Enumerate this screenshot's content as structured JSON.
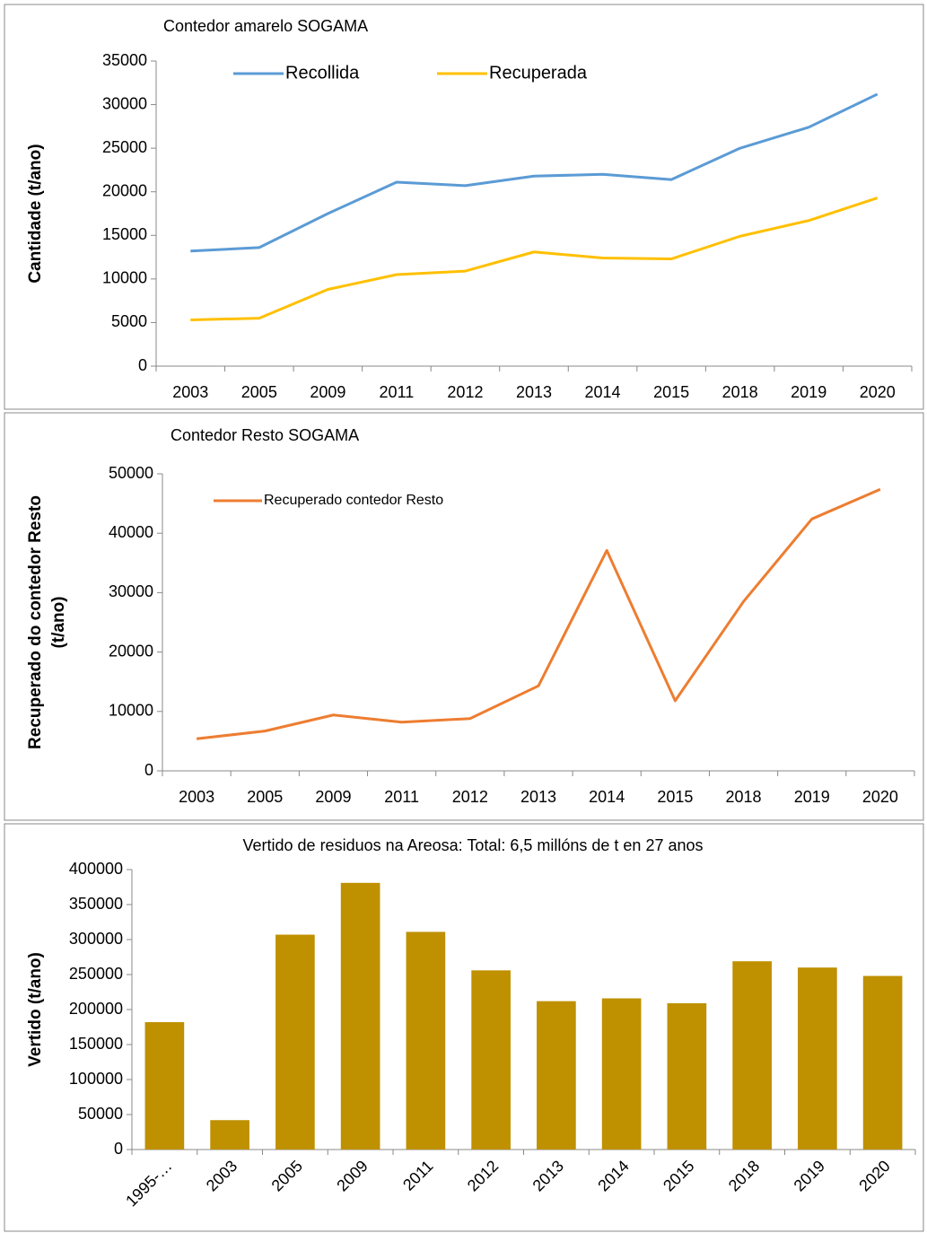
{
  "chart_data": [
    {
      "type": "line",
      "title": "Contedor amarelo SOGAMA",
      "ylabel": [
        "Cantidade (t/ano)"
      ],
      "categories": [
        "2003",
        "2005",
        "2009",
        "2011",
        "2012",
        "2013",
        "2014",
        "2015",
        "2018",
        "2019",
        "2020"
      ],
      "series": [
        {
          "name": "Recollida",
          "color": "#5b9bd5",
          "values": [
            13200,
            13600,
            17500,
            21100,
            20700,
            21800,
            22000,
            21400,
            25000,
            27400,
            31200
          ]
        },
        {
          "name": "Recuperada",
          "color": "#ffc000",
          "values": [
            5300,
            5500,
            8800,
            10500,
            10900,
            13100,
            12400,
            12300,
            14900,
            16700,
            19300
          ]
        }
      ],
      "ylim": [
        0,
        35000
      ],
      "yticks": [
        0,
        5000,
        10000,
        15000,
        20000,
        25000,
        30000,
        35000
      ],
      "legend": "top"
    },
    {
      "type": "line",
      "title": "Contedor Resto SOGAMA",
      "ylabel": [
        "Recuperado do contedor Resto",
        "(t/ano)"
      ],
      "categories": [
        "2003",
        "2005",
        "2009",
        "2011",
        "2012",
        "2013",
        "2014",
        "2015",
        "2018",
        "2019",
        "2020"
      ],
      "series": [
        {
          "name": "Recuperado contedor Resto",
          "color": "#ed7d31",
          "values": [
            5400,
            6700,
            9400,
            8200,
            8800,
            14300,
            37100,
            11800,
            28500,
            42400,
            47400
          ]
        }
      ],
      "ylim": [
        0,
        50000
      ],
      "yticks": [
        0,
        10000,
        20000,
        30000,
        40000,
        50000
      ],
      "legend": "top left"
    },
    {
      "type": "bar",
      "title": "Vertido de residuos na Areosa: Total: 6,5 millóns de t en 27 anos",
      "ylabel": [
        "Vertido (t/ano)"
      ],
      "categories": [
        "1995-…",
        "2003",
        "2005",
        "2009",
        "2011",
        "2012",
        "2013",
        "2014",
        "2015",
        "2018",
        "2019",
        "2020"
      ],
      "values": [
        182000,
        42000,
        307000,
        381000,
        311000,
        256000,
        212000,
        216000,
        209000,
        269000,
        260000,
        248000
      ],
      "color": "#bf9000",
      "ylim": [
        0,
        400000
      ],
      "yticks": [
        0,
        50000,
        100000,
        150000,
        200000,
        250000,
        300000,
        350000,
        400000
      ]
    }
  ]
}
